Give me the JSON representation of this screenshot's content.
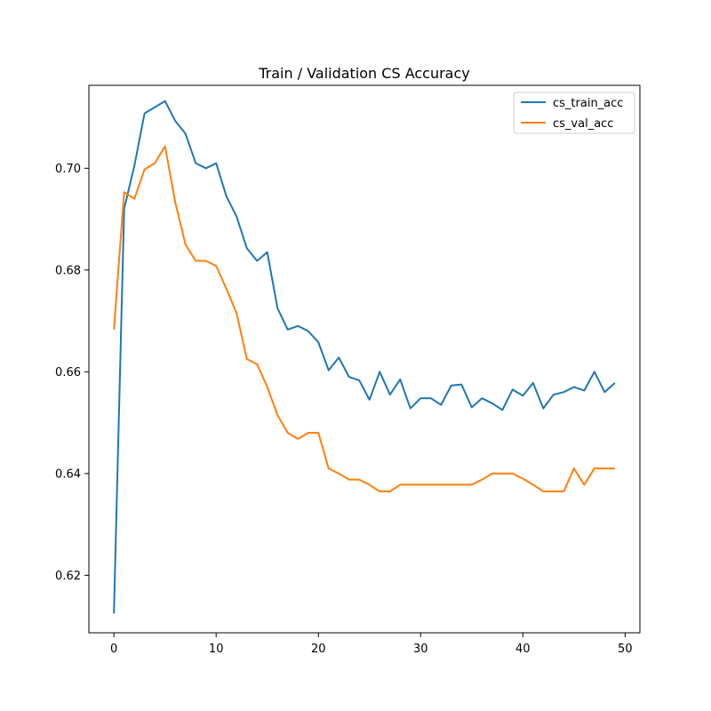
{
  "chart_data": {
    "type": "line",
    "title": "Train / Validation CS Accuracy",
    "xlabel": "",
    "ylabel": "",
    "xlim": [
      -2.45,
      51.45
    ],
    "ylim": [
      0.6087,
      0.7163
    ],
    "xticks": [
      0,
      10,
      20,
      30,
      40,
      50
    ],
    "yticks": [
      0.62,
      0.64,
      0.66,
      0.68,
      0.7
    ],
    "ytick_labels": [
      "0.62",
      "0.64",
      "0.66",
      "0.68",
      "0.70"
    ],
    "xtick_labels": [
      "0",
      "10",
      "20",
      "30",
      "40",
      "50"
    ],
    "grid": false,
    "legend_position": "top-right",
    "x": [
      0,
      1,
      2,
      3,
      4,
      5,
      6,
      7,
      8,
      9,
      10,
      11,
      12,
      13,
      14,
      15,
      16,
      17,
      18,
      19,
      20,
      21,
      22,
      23,
      24,
      25,
      26,
      27,
      28,
      29,
      30,
      31,
      32,
      33,
      34,
      35,
      36,
      37,
      38,
      39,
      40,
      41,
      42,
      43,
      44,
      45,
      46,
      47,
      48,
      49
    ],
    "series": [
      {
        "name": "cs_train_acc",
        "color": "#1f77b4",
        "values": [
          0.6125,
          0.692,
          0.7005,
          0.7108,
          0.712,
          0.7132,
          0.7093,
          0.7068,
          0.701,
          0.7,
          0.701,
          0.6945,
          0.6905,
          0.6843,
          0.6818,
          0.6835,
          0.6725,
          0.6683,
          0.669,
          0.668,
          0.6658,
          0.6603,
          0.6628,
          0.659,
          0.6583,
          0.6545,
          0.66,
          0.6555,
          0.6585,
          0.6528,
          0.6548,
          0.6548,
          0.6535,
          0.6573,
          0.6575,
          0.653,
          0.6548,
          0.6538,
          0.6525,
          0.6565,
          0.6553,
          0.6578,
          0.6528,
          0.6555,
          0.656,
          0.657,
          0.6563,
          0.66,
          0.656,
          0.6578
        ]
      },
      {
        "name": "cs_val_acc",
        "color": "#ff7f0e",
        "values": [
          0.6683,
          0.6953,
          0.694,
          0.6998,
          0.701,
          0.7043,
          0.6933,
          0.685,
          0.6818,
          0.6818,
          0.6808,
          0.6763,
          0.6715,
          0.6625,
          0.6615,
          0.657,
          0.6515,
          0.648,
          0.6468,
          0.648,
          0.648,
          0.641,
          0.64,
          0.6388,
          0.6388,
          0.6378,
          0.6365,
          0.6365,
          0.6378,
          0.6378,
          0.6378,
          0.6378,
          0.6378,
          0.6378,
          0.6378,
          0.6378,
          0.6388,
          0.64,
          0.64,
          0.64,
          0.639,
          0.6378,
          0.6365,
          0.6365,
          0.6365,
          0.641,
          0.6378,
          0.641,
          0.641,
          0.641
        ]
      }
    ]
  }
}
